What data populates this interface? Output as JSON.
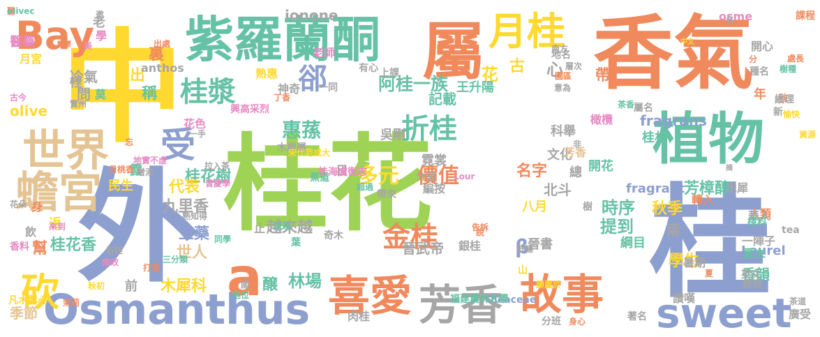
{
  "palette": {
    "green": "#9fd356",
    "orange": "#f08a5d",
    "blue": "#8c9fcf",
    "teal": "#66c2a5",
    "yellow": "#ffd92f",
    "tan": "#e5c494",
    "gray": "#a6a6a6",
    "pink": "#e78ac3"
  },
  "words": [
    {
      "text": "桂花",
      "color": "green"
    },
    {
      "text": "中",
      "color": "yellow"
    },
    {
      "text": "外",
      "color": "blue"
    },
    {
      "text": "桂",
      "color": "blue"
    },
    {
      "text": "香氣",
      "color": "orange"
    },
    {
      "text": "屬",
      "color": "orange"
    },
    {
      "text": "紫羅蘭酮",
      "color": "teal"
    },
    {
      "text": "植物",
      "color": "teal"
    },
    {
      "text": "Osmanthus",
      "color": "blue"
    },
    {
      "text": "月桂",
      "color": "yellow"
    },
    {
      "text": "Bay",
      "color": "orange"
    },
    {
      "text": "世界",
      "color": "tan"
    },
    {
      "text": "蟾宮",
      "color": "tan"
    },
    {
      "text": "芳香",
      "color": "gray"
    },
    {
      "text": "喜愛",
      "color": "orange"
    },
    {
      "text": "故事",
      "color": "orange"
    },
    {
      "text": "sweet",
      "color": "blue"
    },
    {
      "text": "折桂",
      "color": "teal"
    },
    {
      "text": "a",
      "color": "orange"
    },
    {
      "text": "受",
      "color": "blue"
    },
    {
      "text": "砍",
      "color": "yellow"
    },
    {
      "text": "桂漿",
      "color": "teal"
    },
    {
      "text": "金桂",
      "color": "orange"
    },
    {
      "text": "價值",
      "color": "orange"
    },
    {
      "text": "郤",
      "color": "blue"
    },
    {
      "text": "阿桂一族",
      "color": "teal"
    },
    {
      "text": "多元",
      "color": "yellow"
    },
    {
      "text": "惠蓀",
      "color": "teal"
    },
    {
      "text": "林場",
      "color": "teal"
    },
    {
      "text": "fragrans",
      "color": "blue"
    },
    {
      "text": "桂花樹",
      "color": "teal"
    },
    {
      "text": "代表",
      "color": "yellow"
    },
    {
      "text": "九里香",
      "color": "gray"
    },
    {
      "text": "上藥",
      "color": "blue"
    },
    {
      "text": "桂花香",
      "color": "teal"
    },
    {
      "text": "世人",
      "color": "tan"
    },
    {
      "text": "木犀科",
      "color": "yellow"
    },
    {
      "text": "季節",
      "color": "tan"
    },
    {
      "text": "越來越",
      "color": "gray"
    },
    {
      "text": "時序",
      "color": "teal"
    },
    {
      "text": "提到",
      "color": "teal"
    },
    {
      "text": "芳樟醇",
      "color": "teal"
    },
    {
      "text": "fragrant",
      "color": "blue"
    },
    {
      "text": "名字",
      "color": "orange"
    },
    {
      "text": "學生",
      "color": "yellow"
    },
    {
      "text": "Laurel",
      "color": "blue"
    },
    {
      "text": "香韻",
      "color": "teal"
    },
    {
      "text": "ionone",
      "color": "gray"
    },
    {
      "text": "冷氣",
      "color": "gray"
    },
    {
      "text": "問",
      "color": "gray"
    },
    {
      "text": "莫",
      "color": "teal"
    },
    {
      "text": "出",
      "color": "yellow"
    },
    {
      "text": "稱",
      "color": "teal"
    },
    {
      "text": "裏",
      "color": "orange"
    },
    {
      "text": "心",
      "color": "gray"
    },
    {
      "text": "古",
      "color": "yellow"
    },
    {
      "text": "花",
      "color": "yellow"
    },
    {
      "text": "記載",
      "color": "teal"
    },
    {
      "text": "吳剛",
      "color": "gray"
    },
    {
      "text": "霓裳",
      "color": "gray"
    },
    {
      "text": "日",
      "color": "gray"
    },
    {
      "text": "科舉",
      "color": "gray"
    },
    {
      "text": "文化",
      "color": "gray"
    },
    {
      "text": "北斗",
      "color": "gray"
    },
    {
      "text": "八月",
      "color": "yellow"
    },
    {
      "text": "秋季",
      "color": "yellow"
    },
    {
      "text": "帶",
      "color": "orange"
    },
    {
      "text": "年",
      "color": "orange"
    },
    {
      "text": "開花",
      "color": "teal"
    },
    {
      "text": "桂林",
      "color": "teal"
    },
    {
      "text": "綱目",
      "color": "teal"
    },
    {
      "text": "兩",
      "color": "gray"
    },
    {
      "text": "晉書",
      "color": "gray"
    },
    {
      "text": "晉武帝",
      "color": "gray"
    },
    {
      "text": "β",
      "color": "blue"
    },
    {
      "text": "醸",
      "color": "teal"
    },
    {
      "text": "返",
      "color": "yellow"
    },
    {
      "text": "幫",
      "color": "orange"
    },
    {
      "text": "身",
      "color": "orange"
    },
    {
      "text": "飲",
      "color": "gray"
    },
    {
      "text": "前",
      "color": "gray"
    },
    {
      "text": "止",
      "color": "gray"
    },
    {
      "text": "露",
      "color": "teal"
    },
    {
      "text": "民生",
      "color": "yellow"
    },
    {
      "text": "花色",
      "color": "pink"
    },
    {
      "text": "一手",
      "color": "gray"
    },
    {
      "text": "老",
      "color": "gray"
    },
    {
      "text": "學",
      "color": "pink"
    },
    {
      "text": "醫藥",
      "color": "pink"
    },
    {
      "text": "月宮",
      "color": "yellow"
    },
    {
      "text": "裡",
      "color": "gray"
    },
    {
      "text": "古今",
      "color": "pink"
    },
    {
      "text": "olive",
      "color": "yellow"
    },
    {
      "text": "anthos",
      "color": "gray"
    },
    {
      "text": "熟惠",
      "color": "yellow"
    },
    {
      "text": "老師",
      "color": "pink"
    },
    {
      "text": "有心",
      "color": "gray"
    },
    {
      "text": "上課",
      "color": "gray"
    },
    {
      "text": "一同",
      "color": "gray"
    },
    {
      "text": "神奇",
      "color": "gray"
    },
    {
      "text": "丁香",
      "color": "orange"
    },
    {
      "text": "王升陽",
      "color": "teal"
    },
    {
      "text": "興高采烈",
      "color": "pink"
    },
    {
      "text": "意為",
      "color": "gray"
    },
    {
      "text": "園區",
      "color": "orange"
    },
    {
      "text": "層次",
      "color": "gray"
    },
    {
      "text": "茶香",
      "color": "teal"
    },
    {
      "text": "屬名",
      "color": "gray"
    },
    {
      "text": "橄欖",
      "color": "pink"
    },
    {
      "text": "芳香",
      "color": "tan"
    },
    {
      "text": "非",
      "color": "gray"
    },
    {
      "text": "總",
      "color": "gray"
    },
    {
      "text": "摘",
      "color": "gray"
    },
    {
      "text": "木犀",
      "color": "gray"
    },
    {
      "text": "人類",
      "color": "orange"
    },
    {
      "text": "華人",
      "color": "gray"
    },
    {
      "text": "一陣子",
      "color": "gray"
    },
    {
      "text": "夏末",
      "color": "teal"
    },
    {
      "text": "英文",
      "color": "gray"
    },
    {
      "text": "教授",
      "color": "gray"
    },
    {
      "text": "讚嘆",
      "color": "gray"
    },
    {
      "text": "暑期",
      "color": "gray"
    },
    {
      "text": "茶道",
      "color": "gray"
    },
    {
      "text": "廣受",
      "color": "gray"
    },
    {
      "text": "著名",
      "color": "gray"
    },
    {
      "text": "分班",
      "color": "gray"
    },
    {
      "text": "身心",
      "color": "orange"
    },
    {
      "text": "肉桂",
      "color": "gray"
    },
    {
      "text": "Oleaceae",
      "color": "blue"
    },
    {
      "text": "福建農林大學",
      "color": "teal"
    },
    {
      "text": "山",
      "color": "yellow"
    },
    {
      "text": "歸屬於",
      "color": "yellow"
    },
    {
      "text": "舒暢",
      "color": "gray"
    },
    {
      "text": "介紹",
      "color": "gray"
    },
    {
      "text": "編按",
      "color": "gray"
    },
    {
      "text": "帶來",
      "color": "gray"
    },
    {
      "text": "木犀屬",
      "color": "gray"
    },
    {
      "text": "宋代范成大",
      "color": "yellow"
    },
    {
      "text": "Lour",
      "color": "pink"
    },
    {
      "text": "桂海虞衡志",
      "color": "pink"
    },
    {
      "text": "超過",
      "color": "teal"
    },
    {
      "text": "蕉道",
      "color": "teal"
    },
    {
      "text": "銀桂",
      "color": "gray"
    },
    {
      "text": "說",
      "color": "orange"
    },
    {
      "text": "告訴",
      "color": "orange"
    },
    {
      "text": "奇木",
      "color": "gray"
    },
    {
      "text": "葉",
      "color": "teal"
    },
    {
      "text": "流連",
      "color": "teal"
    },
    {
      "text": "同學",
      "color": "teal"
    },
    {
      "text": "拉入茶",
      "color": "gray"
    },
    {
      "text": "曾慶學",
      "color": "pink"
    },
    {
      "text": "熟知得",
      "color": "gray"
    },
    {
      "text": "增添",
      "color": "gray"
    },
    {
      "text": "月桃香",
      "color": "orange"
    },
    {
      "text": "地實不虛",
      "color": "pink"
    },
    {
      "text": "忘",
      "color": "orange"
    },
    {
      "text": "來到",
      "color": "pink"
    },
    {
      "text": "花朵",
      "color": "gray"
    },
    {
      "text": "香料",
      "color": "pink"
    },
    {
      "text": "岩桂",
      "color": "gray"
    },
    {
      "text": "療效",
      "color": "pink"
    },
    {
      "text": "打造",
      "color": "orange"
    },
    {
      "text": "三分類",
      "color": "teal"
    },
    {
      "text": "國",
      "color": "gray"
    },
    {
      "text": "地位",
      "color": "teal"
    },
    {
      "text": "秋初",
      "color": "yellow"
    },
    {
      "text": "凡木薰心",
      "color": "yellow"
    },
    {
      "text": "茉莉",
      "color": "orange"
    },
    {
      "text": "邀",
      "color": "gray"
    },
    {
      "text": "美",
      "color": "pink"
    },
    {
      "text": "馥鬱",
      "color": "orange"
    },
    {
      "text": "出處",
      "color": "orange"
    },
    {
      "text": "實州",
      "color": "gray"
    },
    {
      "text": "osme",
      "color": "pink"
    },
    {
      "text": "名",
      "color": "gray"
    },
    {
      "text": "課程",
      "color": "orange"
    },
    {
      "text": "開心",
      "color": "gray"
    },
    {
      "text": "中文",
      "color": "yellow"
    },
    {
      "text": "痰",
      "color": "orange"
    },
    {
      "text": "地名",
      "color": "gray"
    },
    {
      "text": "南方",
      "color": "gray"
    },
    {
      "text": "種名",
      "color": "gray"
    },
    {
      "text": "分",
      "color": "orange"
    },
    {
      "text": "處長",
      "color": "orange"
    },
    {
      "text": "樹種",
      "color": "teal"
    },
    {
      "text": "秋",
      "color": "orange"
    },
    {
      "text": "縱理",
      "color": "gray"
    },
    {
      "text": "新",
      "color": "gray"
    },
    {
      "text": "愉快",
      "color": "yellow"
    },
    {
      "text": "資源",
      "color": "yellow"
    },
    {
      "text": "轉入",
      "color": "orange"
    },
    {
      "text": "tea",
      "color": "gray"
    },
    {
      "text": "樹",
      "color": "gray"
    },
    {
      "text": "樟科",
      "color": "teal"
    },
    {
      "text": "夏",
      "color": "orange"
    },
    {
      "text": "聽",
      "color": "orange"
    },
    {
      "text": "olivec",
      "color": "teal"
    }
  ]
}
